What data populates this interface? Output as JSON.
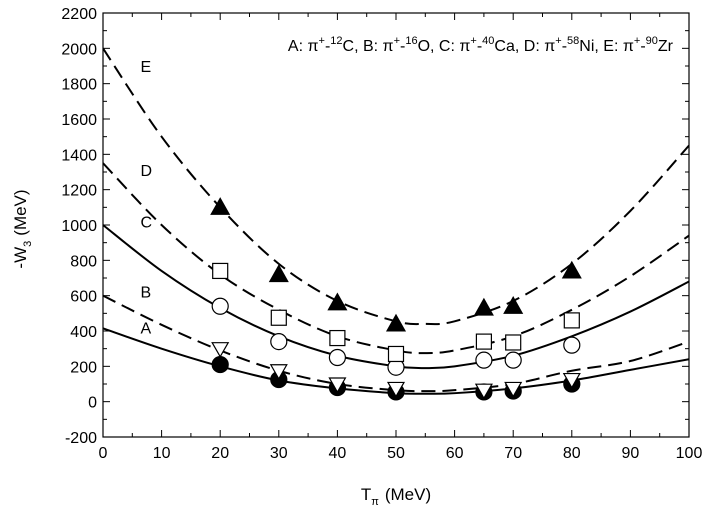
{
  "chart_data": {
    "type": "scatter",
    "title": "",
    "xlabel": "T",
    "xlabel_sub": "π",
    "xlabel_unit": "(MeV)",
    "ylabel": "-W",
    "ylabel_sub": "3",
    "ylabel_unit": "(MeV)",
    "xlim": [
      0,
      100
    ],
    "ylim": [
      -200,
      2200
    ],
    "xticks": [
      0,
      10,
      20,
      30,
      40,
      50,
      60,
      70,
      80,
      90,
      100
    ],
    "yticks": [
      -200,
      0,
      200,
      400,
      600,
      800,
      1000,
      1200,
      1400,
      1600,
      1800,
      2000,
      2200
    ],
    "grid": false,
    "legend_position": "top-right",
    "legend_text": "A: π⁺-¹²C, B: π⁺-¹⁶O, C: π⁺-⁴⁰Ca, D: π⁺-⁵⁸Ni, E: π⁺-⁹⁰Zr",
    "legend_parts": [
      "A: π",
      "+",
      "-",
      "12",
      "C, B: π",
      "+",
      "-",
      "16",
      "O, C: π",
      "+",
      "-",
      "40",
      "Ca, D: π",
      "+",
      "-",
      "58",
      "Ni, E: π",
      "+",
      "-",
      "90",
      "Zr"
    ],
    "series": [
      {
        "name": "A",
        "reaction": "π⁺-¹²C",
        "marker": "filled-circle",
        "line": "solid",
        "x": [
          20,
          30,
          40,
          50,
          65,
          70,
          80
        ],
        "values": [
          210,
          125,
          80,
          55,
          55,
          60,
          100
        ],
        "curve_x": [
          0,
          10,
          20,
          30,
          40,
          50,
          55,
          60,
          70,
          80,
          90,
          100
        ],
        "curve_y": [
          415,
          300,
          200,
          120,
          75,
          48,
          45,
          48,
          75,
          120,
          180,
          240
        ]
      },
      {
        "name": "B",
        "reaction": "π⁺-¹⁶O",
        "marker": "open-triangle-down",
        "line": "dashed",
        "x": [
          20,
          30,
          40,
          50,
          65,
          70,
          80
        ],
        "values": [
          300,
          175,
          100,
          75,
          65,
          75,
          125
        ],
        "curve_x": [
          0,
          10,
          20,
          30,
          40,
          50,
          55,
          60,
          70,
          80,
          90,
          100
        ],
        "curve_y": [
          600,
          435,
          290,
          175,
          100,
          65,
          60,
          65,
          100,
          175,
          230,
          340
        ]
      },
      {
        "name": "C",
        "reaction": "π⁺-⁴⁰Ca",
        "marker": "open-circle",
        "line": "solid",
        "x": [
          20,
          30,
          40,
          50,
          65,
          70,
          80
        ],
        "values": [
          540,
          340,
          250,
          195,
          235,
          235,
          320
        ],
        "curve_x": [
          0,
          10,
          20,
          30,
          40,
          50,
          55,
          60,
          70,
          80,
          90,
          100
        ],
        "curve_y": [
          1000,
          740,
          530,
          370,
          260,
          200,
          190,
          200,
          260,
          370,
          510,
          680
        ]
      },
      {
        "name": "D",
        "reaction": "π⁺-⁵⁸Ni",
        "marker": "open-square",
        "line": "dashed",
        "x": [
          20,
          30,
          40,
          50,
          65,
          70,
          80
        ],
        "values": [
          740,
          475,
          360,
          270,
          340,
          335,
          460
        ],
        "curve_x": [
          0,
          10,
          20,
          30,
          40,
          50,
          55,
          60,
          70,
          80,
          90,
          100
        ],
        "curve_y": [
          1350,
          1000,
          720,
          520,
          370,
          290,
          275,
          290,
          370,
          520,
          710,
          940
        ]
      },
      {
        "name": "E",
        "reaction": "π⁺-⁹⁰Zr",
        "marker": "filled-triangle-up",
        "line": "dashed",
        "x": [
          20,
          30,
          40,
          50,
          65,
          70,
          80
        ],
        "values": [
          1100,
          720,
          560,
          440,
          530,
          540,
          740
        ],
        "curve_x": [
          0,
          10,
          20,
          30,
          40,
          50,
          55,
          60,
          70,
          80,
          90,
          100
        ],
        "curve_y": [
          2000,
          1500,
          1100,
          780,
          570,
          455,
          440,
          455,
          570,
          780,
          1080,
          1450
        ]
      }
    ],
    "curve_labels": [
      {
        "text": "A",
        "x": 4,
        "y": 420
      },
      {
        "text": "B",
        "x": 4,
        "y": 625
      },
      {
        "text": "C",
        "x": 4,
        "y": 1020
      },
      {
        "text": "D",
        "x": 4,
        "y": 1310
      },
      {
        "text": "E",
        "x": 4,
        "y": 1900
      }
    ]
  }
}
